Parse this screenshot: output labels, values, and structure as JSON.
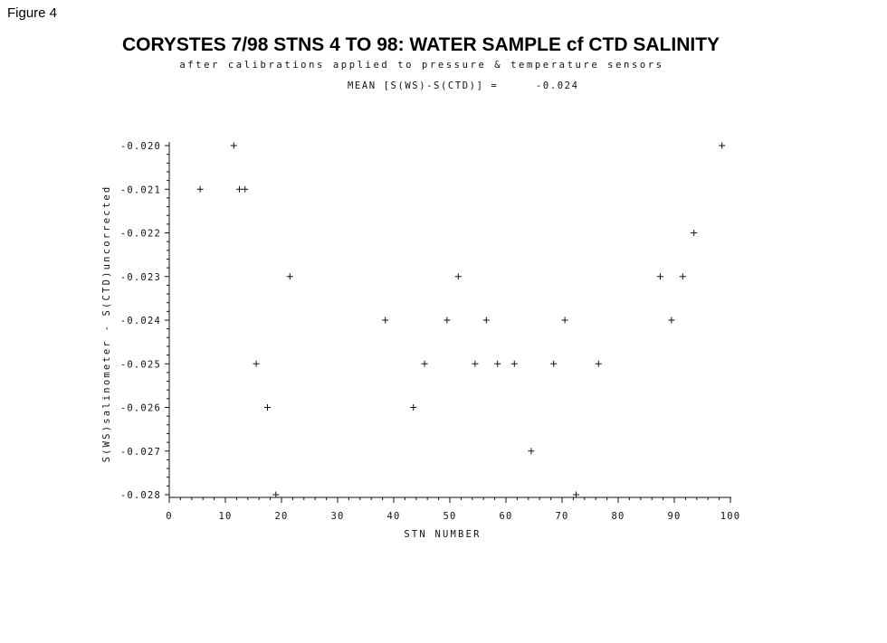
{
  "figure_label": "Figure 4",
  "chart_data": {
    "type": "scatter",
    "title": "CORYSTES 7/98 STNS 4 TO 98: WATER SAMPLE cf CTD SALINITY",
    "subtitle": "after calibrations applied to pressure & temperature sensors",
    "annotation_label": "MEAN [S(WS)-S(CTD)] =",
    "annotation_value": "-0.024",
    "xlabel": "STN NUMBER",
    "ylabel": "S(WS)salinometer - S(CTD)uncorrected",
    "xlim": [
      0,
      100
    ],
    "ylim": [
      -0.028,
      -0.02
    ],
    "x_ticks": [
      "0",
      "10",
      "20",
      "30",
      "40",
      "50",
      "60",
      "70",
      "80",
      "90",
      "100"
    ],
    "y_ticks": [
      "-0.020",
      "-0.021",
      "-0.022",
      "-0.023",
      "-0.024",
      "-0.025",
      "-0.026",
      "-0.027",
      "-0.028"
    ],
    "grid": false,
    "marker": "+",
    "points": [
      {
        "x": 5.5,
        "y": -0.021
      },
      {
        "x": 11.5,
        "y": -0.02
      },
      {
        "x": 12.5,
        "y": -0.021
      },
      {
        "x": 13.5,
        "y": -0.021
      },
      {
        "x": 15.5,
        "y": -0.025
      },
      {
        "x": 17.5,
        "y": -0.026
      },
      {
        "x": 19.0,
        "y": -0.028
      },
      {
        "x": 21.5,
        "y": -0.023
      },
      {
        "x": 38.5,
        "y": -0.024
      },
      {
        "x": 43.5,
        "y": -0.026
      },
      {
        "x": 45.5,
        "y": -0.025
      },
      {
        "x": 49.5,
        "y": -0.024
      },
      {
        "x": 51.5,
        "y": -0.023
      },
      {
        "x": 54.5,
        "y": -0.025
      },
      {
        "x": 56.5,
        "y": -0.024
      },
      {
        "x": 58.5,
        "y": -0.025
      },
      {
        "x": 61.5,
        "y": -0.025
      },
      {
        "x": 64.5,
        "y": -0.027
      },
      {
        "x": 68.5,
        "y": -0.025
      },
      {
        "x": 70.5,
        "y": -0.024
      },
      {
        "x": 72.5,
        "y": -0.028
      },
      {
        "x": 76.5,
        "y": -0.025
      },
      {
        "x": 87.5,
        "y": -0.023
      },
      {
        "x": 89.5,
        "y": -0.024
      },
      {
        "x": 91.5,
        "y": -0.023
      },
      {
        "x": 93.5,
        "y": -0.022
      },
      {
        "x": 98.5,
        "y": -0.02
      }
    ]
  }
}
